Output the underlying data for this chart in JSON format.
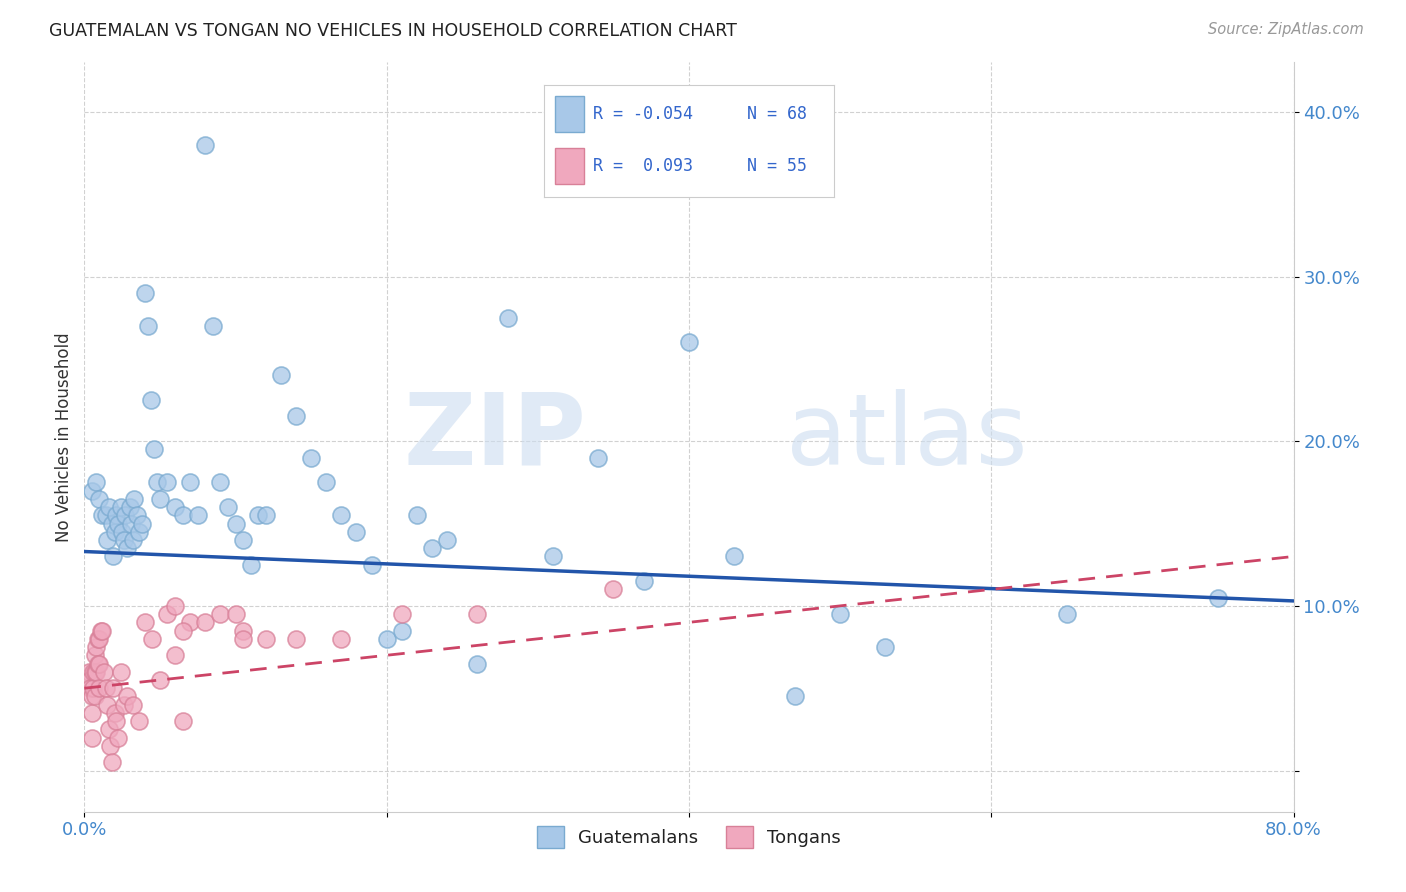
{
  "title": "GUATEMALAN VS TONGAN NO VEHICLES IN HOUSEHOLD CORRELATION CHART",
  "source": "Source: ZipAtlas.com",
  "ylabel": "No Vehicles in Household",
  "xmin": 0.0,
  "xmax": 0.8,
  "ymin": -0.025,
  "ymax": 0.43,
  "yticks": [
    0.0,
    0.1,
    0.2,
    0.3,
    0.4
  ],
  "ytick_labels": [
    "",
    "10.0%",
    "20.0%",
    "30.0%",
    "40.0%"
  ],
  "xticks": [
    0.0,
    0.2,
    0.4,
    0.6,
    0.8
  ],
  "xtick_labels": [
    "0.0%",
    "",
    "",
    "",
    "80.0%"
  ],
  "watermark_zip": "ZIP",
  "watermark_atlas": "atlas",
  "blue_color": "#a8c8e8",
  "blue_edge": "#7aaad0",
  "pink_color": "#f0a8be",
  "pink_edge": "#d88098",
  "trend_blue_color": "#2255aa",
  "trend_pink_color": "#cc4466",
  "legend_blue_R": "R = -0.054",
  "legend_blue_N": "N = 68",
  "legend_pink_R": "R =  0.093",
  "legend_pink_N": "N = 55",
  "blue_trend_x0": 0.0,
  "blue_trend_y0": 0.133,
  "blue_trend_x1": 0.8,
  "blue_trend_y1": 0.103,
  "pink_trend_x0": 0.0,
  "pink_trend_y0": 0.05,
  "pink_trend_x1": 0.8,
  "pink_trend_y1": 0.13,
  "blue_x": [
    0.005,
    0.008,
    0.01,
    0.012,
    0.014,
    0.015,
    0.016,
    0.018,
    0.019,
    0.02,
    0.021,
    0.022,
    0.024,
    0.025,
    0.026,
    0.027,
    0.028,
    0.03,
    0.031,
    0.032,
    0.033,
    0.035,
    0.036,
    0.038,
    0.04,
    0.042,
    0.044,
    0.046,
    0.048,
    0.05,
    0.055,
    0.06,
    0.065,
    0.07,
    0.075,
    0.08,
    0.085,
    0.09,
    0.095,
    0.1,
    0.105,
    0.11,
    0.115,
    0.12,
    0.13,
    0.14,
    0.15,
    0.16,
    0.17,
    0.18,
    0.19,
    0.2,
    0.21,
    0.22,
    0.23,
    0.24,
    0.26,
    0.28,
    0.31,
    0.34,
    0.37,
    0.4,
    0.43,
    0.47,
    0.5,
    0.53,
    0.65,
    0.75
  ],
  "blue_y": [
    0.17,
    0.175,
    0.165,
    0.155,
    0.155,
    0.14,
    0.16,
    0.15,
    0.13,
    0.145,
    0.155,
    0.15,
    0.16,
    0.145,
    0.14,
    0.155,
    0.135,
    0.16,
    0.15,
    0.14,
    0.165,
    0.155,
    0.145,
    0.15,
    0.29,
    0.27,
    0.225,
    0.195,
    0.175,
    0.165,
    0.175,
    0.16,
    0.155,
    0.175,
    0.155,
    0.38,
    0.27,
    0.175,
    0.16,
    0.15,
    0.14,
    0.125,
    0.155,
    0.155,
    0.24,
    0.215,
    0.19,
    0.175,
    0.155,
    0.145,
    0.125,
    0.08,
    0.085,
    0.155,
    0.135,
    0.14,
    0.065,
    0.275,
    0.13,
    0.19,
    0.115,
    0.26,
    0.13,
    0.045,
    0.095,
    0.075,
    0.095,
    0.105
  ],
  "pink_x": [
    0.003,
    0.004,
    0.004,
    0.005,
    0.005,
    0.005,
    0.006,
    0.006,
    0.007,
    0.007,
    0.007,
    0.008,
    0.008,
    0.009,
    0.009,
    0.01,
    0.01,
    0.01,
    0.011,
    0.012,
    0.013,
    0.014,
    0.015,
    0.016,
    0.017,
    0.018,
    0.019,
    0.02,
    0.021,
    0.022,
    0.024,
    0.026,
    0.028,
    0.032,
    0.036,
    0.04,
    0.045,
    0.05,
    0.055,
    0.06,
    0.065,
    0.07,
    0.08,
    0.09,
    0.1,
    0.12,
    0.14,
    0.17,
    0.21,
    0.26,
    0.06,
    0.065,
    0.105,
    0.105,
    0.35
  ],
  "pink_y": [
    0.06,
    0.055,
    0.05,
    0.045,
    0.035,
    0.02,
    0.06,
    0.05,
    0.07,
    0.06,
    0.045,
    0.075,
    0.06,
    0.08,
    0.065,
    0.08,
    0.065,
    0.05,
    0.085,
    0.085,
    0.06,
    0.05,
    0.04,
    0.025,
    0.015,
    0.005,
    0.05,
    0.035,
    0.03,
    0.02,
    0.06,
    0.04,
    0.045,
    0.04,
    0.03,
    0.09,
    0.08,
    0.055,
    0.095,
    0.07,
    0.03,
    0.09,
    0.09,
    0.095,
    0.095,
    0.08,
    0.08,
    0.08,
    0.095,
    0.095,
    0.1,
    0.085,
    0.085,
    0.08,
    0.11
  ]
}
